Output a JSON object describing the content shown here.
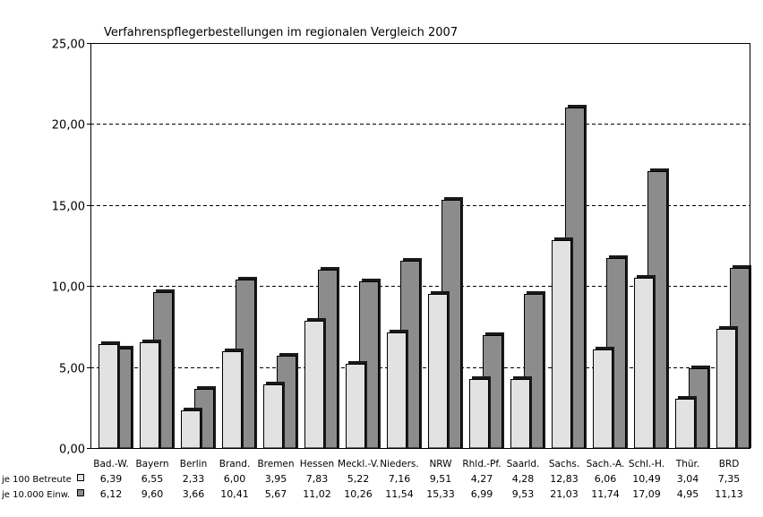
{
  "chart_data": {
    "type": "bar",
    "title": "Verfahrenspflegerbestellungen im regionalen Vergleich 2007",
    "xlabel": "",
    "ylabel": "",
    "ylim": [
      0,
      25
    ],
    "yticks": [
      "0,00",
      "5,00",
      "10,00",
      "15,00",
      "20,00",
      "25,00"
    ],
    "grid": true,
    "legend": "data-table-below",
    "categories": [
      "Bad.-W.",
      "Bayern",
      "Berlin",
      "Brand.",
      "Bremen",
      "Hessen",
      "Meckl.-V.",
      "Nieders.",
      "NRW",
      "Rhld.-Pf.",
      "Saarld.",
      "Sachs.",
      "Sach.-A.",
      "Schl.-H.",
      "Thür.",
      "BRD"
    ],
    "series": [
      {
        "name": "je 100 Betreute",
        "color": "#e2e2e2",
        "values": [
          6.39,
          6.55,
          2.33,
          6.0,
          3.95,
          7.83,
          5.22,
          7.16,
          9.51,
          4.27,
          4.28,
          12.83,
          6.06,
          10.49,
          3.04,
          7.35
        ],
        "labels": [
          "6,39",
          "6,55",
          "2,33",
          "6,00",
          "3,95",
          "7,83",
          "5,22",
          "7,16",
          "9,51",
          "4,27",
          "4,28",
          "12,83",
          "6,06",
          "10,49",
          "3,04",
          "7,35"
        ]
      },
      {
        "name": "je 10.000 Einw.",
        "color": "#8c8c8c",
        "values": [
          6.12,
          9.6,
          3.66,
          10.41,
          5.67,
          11.02,
          10.26,
          11.54,
          15.33,
          6.99,
          9.53,
          21.03,
          11.74,
          17.09,
          4.95,
          11.13
        ],
        "labels": [
          "6,12",
          "9,60",
          "3,66",
          "10,41",
          "5,67",
          "11,02",
          "10,26",
          "11,54",
          "15,33",
          "6,99",
          "9,53",
          "21,03",
          "11,74",
          "17,09",
          "4,95",
          "11,13"
        ]
      }
    ]
  }
}
